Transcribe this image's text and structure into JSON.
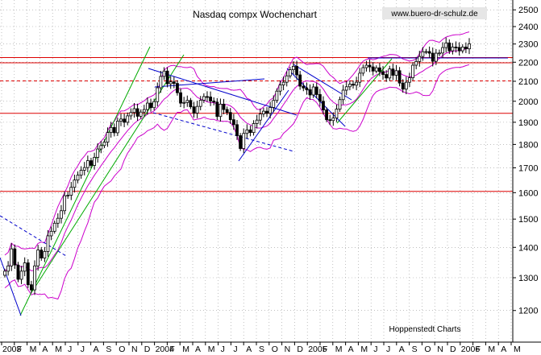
{
  "chart_data": {
    "type": "candlestick",
    "title": "Nasdaq compx Wochenchart",
    "watermark": "www.buero-dr-schulz.de",
    "source_note": "Hoppenstedt Charts",
    "y_axis": {
      "scale": "log",
      "range": [
        1160,
        2560
      ],
      "ticks": [
        1200,
        1300,
        1400,
        1500,
        1600,
        1700,
        1800,
        1900,
        2000,
        2100,
        2200,
        2300,
        2400,
        2500
      ],
      "side": "right"
    },
    "x_axis": {
      "labels": [
        "2003",
        "F",
        "M",
        "A",
        "M",
        "J",
        "J",
        "A",
        "S",
        "O",
        "N",
        "D",
        "2004",
        "F",
        "M",
        "A",
        "M",
        "J",
        "J",
        "A",
        "S",
        "O",
        "N",
        "D",
        "2005",
        "F",
        "M",
        "A",
        "M",
        "J",
        "J",
        "A",
        "S",
        "O",
        "N",
        "D",
        "2006",
        "F",
        "M",
        "A",
        "M"
      ],
      "bold_labels": [
        "2003",
        "2004",
        "2005",
        "2006"
      ]
    },
    "grid": true,
    "colors": {
      "candle_up": "#ffffff",
      "candle_down": "#000000",
      "bollinger": "#cc00cc",
      "support_resistance": "#dd0000",
      "trend_up": "#00aa00",
      "trend_down": "#0000cc",
      "grid": "#999999"
    },
    "horizontal_lines": [
      {
        "value": 2225,
        "style": "solid"
      },
      {
        "value": 2197,
        "style": "solid"
      },
      {
        "value": 2102,
        "style": "dashed"
      },
      {
        "value": 1942,
        "style": "solid"
      },
      {
        "value": 1605,
        "style": "solid"
      }
    ],
    "weekly_close": [
      1321,
      1338,
      1395,
      1341,
      1295,
      1321,
      1348,
      1278,
      1262,
      1338,
      1391,
      1364,
      1386,
      1440,
      1456,
      1485,
      1503,
      1531,
      1588,
      1590,
      1621,
      1650,
      1670,
      1690,
      1701,
      1730,
      1710,
      1744,
      1780,
      1795,
      1810,
      1853,
      1876,
      1852,
      1905,
      1915,
      1900,
      1930,
      1946,
      1964,
      1928,
      1948,
      1960,
      1991,
      1969,
      1998,
      2067,
      2125,
      2153,
      2087,
      2097,
      2089,
      2042,
      1991,
      1994,
      2004,
      1973,
      1943,
      1975,
      2005,
      2023,
      2021,
      2001,
      1996,
      1927,
      1986,
      1960,
      1946,
      1912,
      1889,
      1839,
      1782,
      1849,
      1865,
      1853,
      1894,
      1910,
      1939,
      1952,
      1942,
      1970,
      2004,
      2050,
      2081,
      2095,
      2128,
      2160,
      2178,
      2133,
      2075,
      2066,
      2057,
      2031,
      2071,
      2033,
      2000,
      1958,
      1912,
      1908,
      1920,
      1962,
      2008,
      2055,
      2072,
      2085,
      2080,
      2095,
      2142,
      2171,
      2184,
      2175,
      2153,
      2170,
      2150,
      2135,
      2117,
      2164,
      2131,
      2155,
      2091,
      2060,
      2095,
      2118,
      2184,
      2204,
      2231,
      2257,
      2258,
      2249,
      2205,
      2249,
      2250,
      2280,
      2306,
      2262,
      2283,
      2281,
      2262,
      2283,
      2273,
      2301
    ]
  }
}
